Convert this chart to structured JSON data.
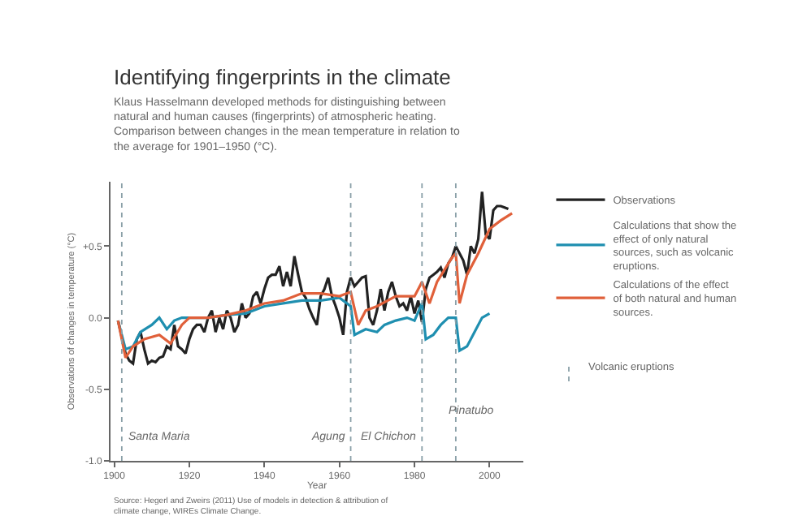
{
  "chart_data": {
    "type": "line",
    "title": "Identifying fingerprints in the climate",
    "subtitle": "Klaus Hasselmann developed methods for distinguishing between natural and human causes (fingerprints) of atmospheric heating. Comparison between changes in the mean temperature in relation to the average for 1901–1950 (°C).",
    "xlabel": "Year",
    "ylabel": "Observations of changes in temperature (°C)",
    "xlim": [
      1899,
      2009
    ],
    "xticks": [
      1900,
      1920,
      1940,
      1960,
      1980,
      2000
    ],
    "ylim": [
      -1.0,
      0.95
    ],
    "yticks": [
      {
        "value": -1.0,
        "label": "-1.0"
      },
      {
        "value": -0.5,
        "label": "-0.5"
      },
      {
        "value": 0.0,
        "label": "0.0"
      },
      {
        "value": 0.5,
        "label": "+0.5"
      }
    ],
    "series": [
      {
        "name": "Observations",
        "color": "#222222",
        "x": [
          1901,
          1903,
          1904,
          1905,
          1906,
          1907,
          1908,
          1909,
          1910,
          1911,
          1912,
          1913,
          1914,
          1915,
          1916,
          1917,
          1918,
          1919,
          1920,
          1921,
          1922,
          1923,
          1924,
          1925,
          1926,
          1927,
          1928,
          1929,
          1930,
          1931,
          1932,
          1933,
          1934,
          1935,
          1936,
          1937,
          1938,
          1939,
          1940,
          1941,
          1942,
          1943,
          1944,
          1945,
          1946,
          1947,
          1948,
          1949,
          1950,
          1951,
          1952,
          1953,
          1954,
          1955,
          1956,
          1957,
          1958,
          1959,
          1960,
          1961,
          1962,
          1963,
          1964,
          1965,
          1966,
          1967,
          1968,
          1969,
          1970,
          1971,
          1972,
          1973,
          1974,
          1975,
          1976,
          1977,
          1978,
          1979,
          1980,
          1981,
          1982,
          1983,
          1984,
          1985,
          1986,
          1987,
          1988,
          1989,
          1990,
          1991,
          1992,
          1993,
          1994,
          1995,
          1996,
          1997,
          1998,
          1999,
          2000,
          2001,
          2002,
          2003,
          2004,
          2005
        ],
        "values": [
          -0.02,
          -0.25,
          -0.3,
          -0.32,
          -0.15,
          -0.1,
          -0.22,
          -0.32,
          -0.3,
          -0.31,
          -0.28,
          -0.27,
          -0.2,
          -0.22,
          -0.05,
          -0.2,
          -0.22,
          -0.25,
          -0.15,
          -0.08,
          -0.05,
          -0.05,
          -0.1,
          0.0,
          0.05,
          -0.1,
          0.0,
          -0.08,
          0.05,
          0.0,
          -0.1,
          -0.05,
          0.1,
          0.0,
          0.03,
          0.15,
          0.18,
          0.1,
          0.2,
          0.28,
          0.3,
          0.3,
          0.36,
          0.22,
          0.32,
          0.22,
          0.43,
          0.3,
          0.18,
          0.14,
          0.06,
          0.0,
          -0.05,
          0.15,
          0.2,
          0.28,
          0.15,
          0.08,
          0.0,
          -0.12,
          0.18,
          0.28,
          0.22,
          0.25,
          0.28,
          0.29,
          0.0,
          -0.05,
          0.05,
          0.2,
          0.05,
          0.18,
          0.25,
          0.15,
          0.08,
          0.1,
          0.05,
          0.15,
          0.03,
          0.12,
          -0.03,
          0.2,
          0.28,
          0.3,
          0.32,
          0.35,
          0.28,
          0.38,
          0.42,
          0.5,
          0.45,
          0.4,
          0.3,
          0.5,
          0.45,
          0.55,
          0.88,
          0.58,
          0.55,
          0.75,
          0.78,
          0.78,
          0.77,
          0.76
        ]
      },
      {
        "name": "Calculations that show the effect of only natural sources, such as volcanic eruptions.",
        "color": "#1f8fb0",
        "x": [
          1901,
          1903,
          1905,
          1907,
          1910,
          1912,
          1914,
          1916,
          1918,
          1925,
          1930,
          1935,
          1940,
          1945,
          1950,
          1955,
          1960,
          1963,
          1964,
          1967,
          1970,
          1972,
          1975,
          1978,
          1980,
          1982,
          1983,
          1985,
          1987,
          1989,
          1991,
          1992,
          1994,
          1996,
          1998,
          2000
        ],
        "values": [
          -0.02,
          -0.22,
          -0.2,
          -0.1,
          -0.05,
          0.0,
          -0.08,
          -0.02,
          0.0,
          0.0,
          0.02,
          0.03,
          0.08,
          0.1,
          0.12,
          0.12,
          0.14,
          0.08,
          -0.12,
          -0.08,
          -0.1,
          -0.05,
          -0.02,
          0.0,
          -0.02,
          0.1,
          -0.15,
          -0.12,
          -0.05,
          0.0,
          0.0,
          -0.23,
          -0.2,
          -0.1,
          0.0,
          0.03
        ]
      },
      {
        "name": "Calculations of the effect of both natural and human sources.",
        "color": "#e0603a",
        "x": [
          1901,
          1903,
          1905,
          1908,
          1912,
          1915,
          1918,
          1920,
          1925,
          1930,
          1935,
          1940,
          1945,
          1950,
          1955,
          1960,
          1963,
          1965,
          1967,
          1970,
          1975,
          1980,
          1982,
          1984,
          1986,
          1990,
          1991,
          1992,
          1994,
          1997,
          2000,
          2003,
          2006
        ],
        "values": [
          -0.02,
          -0.28,
          -0.2,
          -0.15,
          -0.12,
          -0.18,
          -0.05,
          0.0,
          0.0,
          0.02,
          0.05,
          0.1,
          0.12,
          0.17,
          0.17,
          0.15,
          0.18,
          -0.05,
          0.05,
          0.08,
          0.15,
          0.15,
          0.25,
          0.1,
          0.25,
          0.42,
          0.45,
          0.1,
          0.3,
          0.45,
          0.62,
          0.68,
          0.73
        ]
      }
    ],
    "ref_lines": [
      {
        "axis": "x",
        "value": 1902,
        "label": "Santa Maria",
        "color": "#8aa0a8",
        "line_style": "dotted"
      },
      {
        "axis": "x",
        "value": 1963,
        "label": "Agung",
        "color": "#8aa0a8",
        "line_style": "dotted"
      },
      {
        "axis": "x",
        "value": 1982,
        "label": "El Chichon",
        "color": "#8aa0a8",
        "line_style": "dotted"
      },
      {
        "axis": "x",
        "value": 1991,
        "label": "Pinatubo",
        "color": "#8aa0a8",
        "line_style": "dotted"
      }
    ],
    "legend": "right",
    "line_style": "solid",
    "marker": "none",
    "annotations": [
      "Volcanic eruptions",
      "Source: Hegerl and Zweirs (2011) Use of models in detection & attribution of climate change, WIREs Climate Change."
    ]
  }
}
